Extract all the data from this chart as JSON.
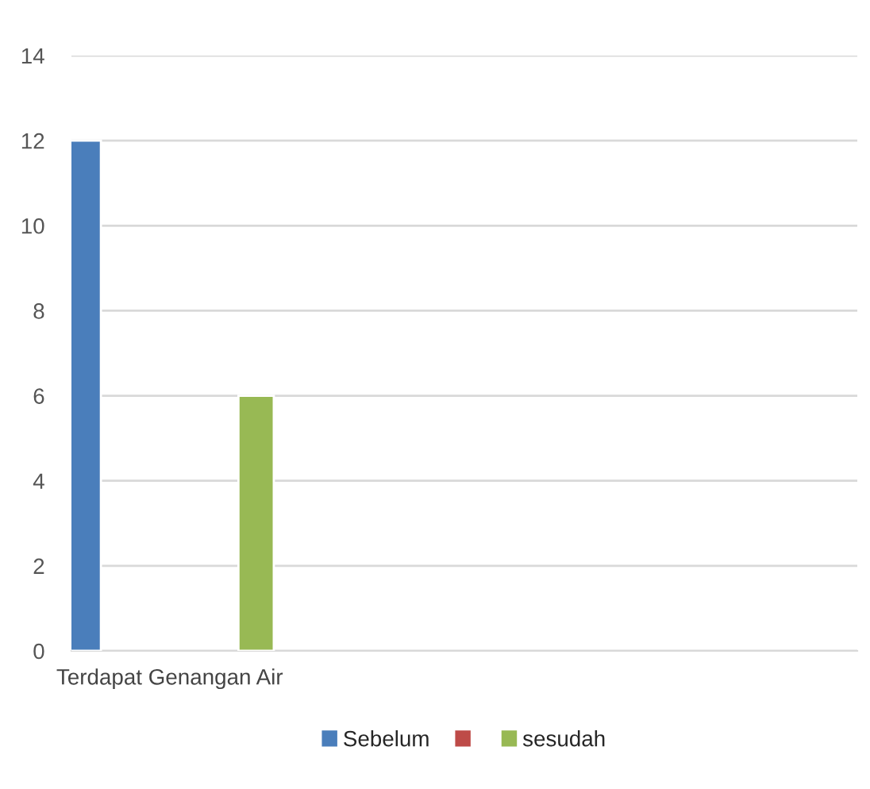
{
  "chart_data": {
    "type": "bar",
    "categories": [
      "Terdapat Genangan Air",
      null,
      null,
      null
    ],
    "series": [
      {
        "name": "Sebelum",
        "color": "#4a7ebb",
        "values": [
          12,
          null,
          null,
          null
        ]
      },
      {
        "color": "#be4b48",
        "values": [
          null,
          null,
          null,
          null
        ]
      },
      {
        "name": "sesudah",
        "color": "#98b954",
        "values": [
          6,
          null,
          null,
          null
        ]
      }
    ],
    "ylim": [
      0,
      14
    ],
    "yticks": [
      0,
      2,
      4,
      6,
      8,
      10,
      12,
      14
    ],
    "grid": "y",
    "legend": "bottom"
  }
}
